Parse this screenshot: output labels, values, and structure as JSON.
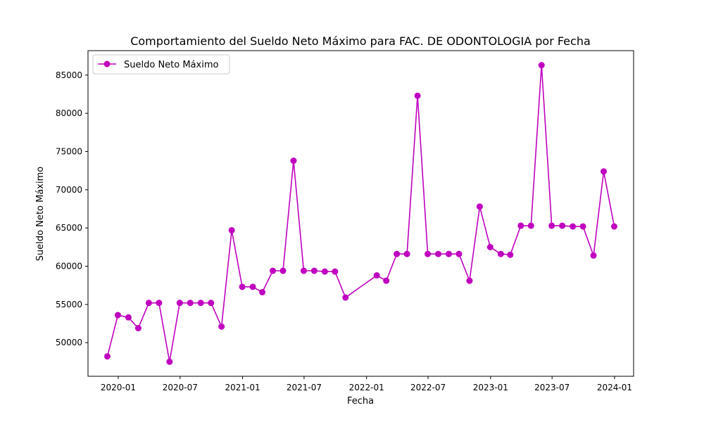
{
  "chart_data": {
    "type": "line",
    "title": "Comportamiento del Sueldo Neto Máximo para FAC. DE ODONTOLOGIA por Fecha",
    "xlabel": "Fecha",
    "ylabel": "Sueldo Neto Máximo",
    "x_tick_labels": [
      "2020-01",
      "2020-07",
      "2021-01",
      "2021-07",
      "2022-01",
      "2022-07",
      "2023-01",
      "2023-07",
      "2024-01"
    ],
    "y_tick_labels": [
      "50000",
      "55000",
      "60000",
      "65000",
      "70000",
      "75000",
      "80000",
      "85000"
    ],
    "y_tick_values": [
      50000,
      55000,
      60000,
      65000,
      70000,
      75000,
      80000,
      85000
    ],
    "ylim": [
      45600,
      88200
    ],
    "xlim": [
      "2019-10-04",
      "2024-02-26"
    ],
    "legend_position": "upper-left",
    "grid": false,
    "color": "#bf00bf",
    "series": [
      {
        "name": "Sueldo Neto Máximo",
        "x": [
          "2019-11-30",
          "2019-12-31",
          "2020-01-31",
          "2020-02-29",
          "2020-03-31",
          "2020-04-30",
          "2020-05-31",
          "2020-06-30",
          "2020-07-31",
          "2020-08-31",
          "2020-09-30",
          "2020-10-31",
          "2020-11-30",
          "2020-12-31",
          "2021-01-31",
          "2021-02-28",
          "2021-03-31",
          "2021-04-30",
          "2021-05-31",
          "2021-06-30",
          "2021-07-31",
          "2021-08-31",
          "2021-09-30",
          "2021-10-31",
          "2022-01-31",
          "2022-02-28",
          "2022-03-31",
          "2022-04-30",
          "2022-05-31",
          "2022-06-30",
          "2022-07-31",
          "2022-08-31",
          "2022-09-30",
          "2022-10-31",
          "2022-11-30",
          "2022-12-31",
          "2023-01-31",
          "2023-02-28",
          "2023-03-31",
          "2023-04-30",
          "2023-05-31",
          "2023-06-30",
          "2023-07-31",
          "2023-08-31",
          "2023-09-30",
          "2023-10-31",
          "2023-11-30",
          "2023-12-31"
        ],
        "values": [
          48200,
          53600,
          53300,
          51900,
          55200,
          55200,
          47500,
          55200,
          55200,
          55200,
          55200,
          52100,
          64700,
          57300,
          57300,
          56600,
          59400,
          59400,
          73800,
          59400,
          59400,
          59300,
          59300,
          55900,
          58800,
          58100,
          61600,
          61600,
          82300,
          61600,
          61600,
          61600,
          61600,
          58100,
          67800,
          62500,
          61600,
          61500,
          65300,
          65300,
          86300,
          65300,
          65300,
          65200,
          65200,
          61400,
          72400,
          65200
        ]
      }
    ]
  }
}
